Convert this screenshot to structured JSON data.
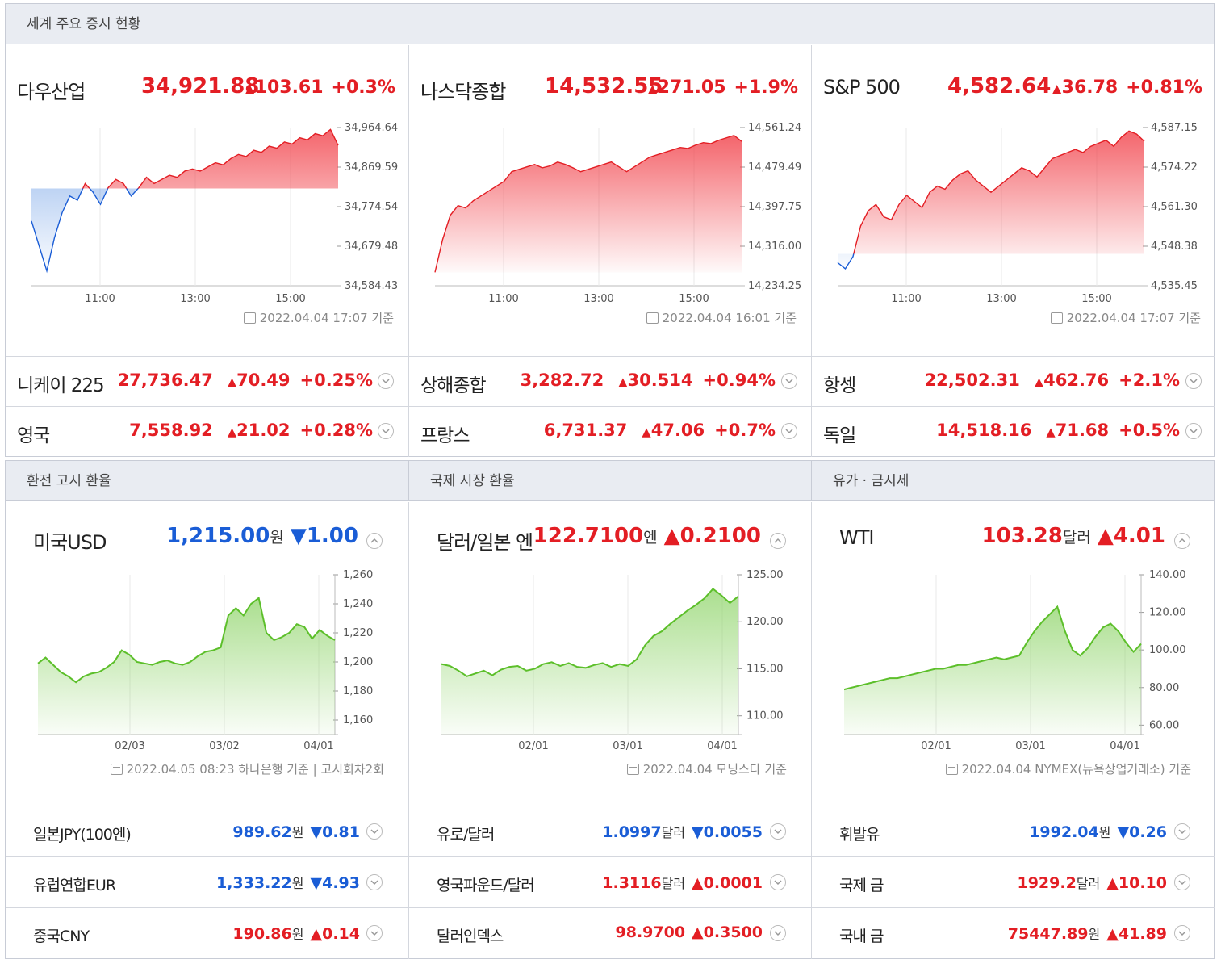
{
  "stock_header": "세계 주요 증시 현황",
  "stocks_main": [
    {
      "name": "다우산업",
      "price": "34,921.88",
      "change": "103.61",
      "pct": "+0.3%",
      "timestamp": "2022.04.04 17:07 기준",
      "y_ticks": [
        "34,964.64",
        "34,869.59",
        "34,774.54",
        "34,679.48",
        "34,584.43"
      ],
      "x_ticks": [
        "11:00",
        "13:00",
        "15:00"
      ],
      "baseline_index": 0.38,
      "chart_data": {
        "type": "area",
        "y_min": 34584.43,
        "y_max": 34964.64,
        "prev_close": 34818.27,
        "values": [
          34740,
          34680,
          34620,
          34700,
          34760,
          34800,
          34790,
          34830,
          34810,
          34780,
          34820,
          34840,
          34830,
          34800,
          34820,
          34845,
          34830,
          34840,
          34850,
          34845,
          34860,
          34865,
          34860,
          34870,
          34880,
          34875,
          34890,
          34900,
          34895,
          34910,
          34905,
          34920,
          34915,
          34930,
          34925,
          34940,
          34935,
          34950,
          34945,
          34960,
          34921.88
        ]
      }
    },
    {
      "name": "나스닥종합",
      "price": "14,532.55",
      "change": "271.05",
      "pct": "+1.9%",
      "timestamp": "2022.04.04 16:01 기준",
      "y_ticks": [
        "14,561.24",
        "14,479.49",
        "14,397.75",
        "14,316.00",
        "14,234.25"
      ],
      "x_ticks": [
        "11:00",
        "13:00",
        "15:00"
      ],
      "baseline_index": 0,
      "chart_data": {
        "type": "area",
        "y_min": 14234.25,
        "y_max": 14561.24,
        "prev_close": 14261.5,
        "values": [
          14262,
          14330,
          14380,
          14400,
          14395,
          14410,
          14420,
          14430,
          14440,
          14450,
          14470,
          14475,
          14480,
          14485,
          14478,
          14482,
          14490,
          14485,
          14478,
          14470,
          14475,
          14480,
          14485,
          14490,
          14480,
          14470,
          14480,
          14490,
          14500,
          14505,
          14510,
          14515,
          14520,
          14518,
          14525,
          14530,
          14528,
          14535,
          14540,
          14545,
          14532.55
        ]
      }
    },
    {
      "name": "S&P 500",
      "price": "4,582.64",
      "change": "36.78",
      "pct": "+0.81%",
      "timestamp": "2022.04.04 17:07 기준",
      "y_ticks": [
        "4,587.15",
        "4,574.22",
        "4,561.30",
        "4,548.38",
        "4,535.45"
      ],
      "x_ticks": [
        "11:00",
        "13:00",
        "15:00"
      ],
      "baseline_index": 0.05,
      "chart_data": {
        "type": "area",
        "y_min": 4535.45,
        "y_max": 4587.15,
        "prev_close": 4545.86,
        "values": [
          4543,
          4541,
          4545,
          4555,
          4560,
          4562,
          4558,
          4557,
          4562,
          4565,
          4563,
          4561,
          4566,
          4568,
          4567,
          4570,
          4572,
          4573,
          4570,
          4568,
          4566,
          4568,
          4570,
          4572,
          4574,
          4573,
          4571,
          4574,
          4577,
          4578,
          4579,
          4580,
          4579,
          4581,
          4582,
          4583,
          4581,
          4584,
          4586,
          4585,
          4582.64
        ]
      }
    }
  ],
  "stocks_rows": [
    [
      {
        "name": "니케이 225",
        "price": "27,736.47",
        "change": "70.49",
        "pct": "+0.25%"
      },
      {
        "name": "상해종합",
        "price": "3,282.72",
        "change": "30.514",
        "pct": "+0.94%"
      },
      {
        "name": "항셍",
        "price": "22,502.31",
        "change": "462.76",
        "pct": "+2.1%"
      }
    ],
    [
      {
        "name": "영국",
        "price": "7,558.92",
        "change": "21.02",
        "pct": "+0.28%"
      },
      {
        "name": "프랑스",
        "price": "6,731.37",
        "change": "47.06",
        "pct": "+0.7%"
      },
      {
        "name": "독일",
        "price": "14,518.16",
        "change": "71.68",
        "pct": "+0.5%"
      }
    ]
  ],
  "fx_headers": [
    "환전 고시 환율",
    "국제 시장 환율",
    "유가 · 금시세"
  ],
  "fx_main": [
    {
      "name": "미국USD",
      "price": "1,215.00",
      "unit": "원",
      "dir": "down",
      "change": "1.00",
      "timestamp": "2022.04.05 08:23 하나은행 기준 | 고시회차2회",
      "y_ticks": [
        "1,260",
        "1,240",
        "1,220",
        "1,200",
        "1,180",
        "1,160"
      ],
      "x_ticks": [
        "02/03",
        "03/02",
        "04/01"
      ],
      "chart_data": {
        "type": "area",
        "y_min": 1150,
        "y_max": 1260,
        "values": [
          1199,
          1203,
          1198,
          1193,
          1190,
          1186,
          1190,
          1192,
          1193,
          1196,
          1200,
          1208,
          1205,
          1200,
          1199,
          1198,
          1200,
          1201,
          1199,
          1198,
          1200,
          1204,
          1207,
          1208,
          1210,
          1232,
          1237,
          1232,
          1240,
          1244,
          1220,
          1215,
          1217,
          1220,
          1226,
          1224,
          1216,
          1222,
          1218,
          1215
        ]
      }
    },
    {
      "name": "달러/일본 엔",
      "price": "122.7100",
      "unit": "엔",
      "dir": "up",
      "change": "0.2100",
      "timestamp": "2022.04.04 모닝스타 기준",
      "y_ticks": [
        "125.00",
        "120.00",
        "115.00",
        "110.00"
      ],
      "x_ticks": [
        "02/01",
        "03/01",
        "04/01"
      ],
      "chart_data": {
        "type": "area",
        "y_min": 108,
        "y_max": 125,
        "values": [
          115.5,
          115.3,
          114.8,
          114.2,
          114.5,
          114.8,
          114.3,
          114.9,
          115.2,
          115.3,
          114.8,
          115.0,
          115.5,
          115.7,
          115.3,
          115.6,
          115.2,
          115.1,
          115.4,
          115.6,
          115.2,
          115.5,
          115.3,
          116.0,
          117.5,
          118.5,
          119.0,
          119.8,
          120.5,
          121.2,
          121.8,
          122.5,
          123.5,
          122.8,
          122.0,
          122.71
        ]
      }
    },
    {
      "name": "WTI",
      "price": "103.28",
      "unit": "달러",
      "dir": "up",
      "change": "4.01",
      "timestamp": "2022.04.04 NYMEX(뉴욕상업거래소) 기준",
      "y_ticks": [
        "140.00",
        "120.00",
        "100.00",
        "80.00",
        "60.00"
      ],
      "x_ticks": [
        "02/01",
        "03/01",
        "04/01"
      ],
      "chart_data": {
        "type": "area",
        "y_min": 55,
        "y_max": 140,
        "values": [
          79,
          80,
          81,
          82,
          83,
          84,
          85,
          85,
          86,
          87,
          88,
          89,
          90,
          90,
          91,
          92,
          92,
          93,
          94,
          95,
          96,
          95,
          96,
          97,
          104,
          110,
          115,
          119,
          123,
          110,
          100,
          97,
          101,
          107,
          112,
          114,
          110,
          104,
          99,
          103.28
        ]
      }
    }
  ],
  "fx_rows": [
    [
      {
        "name": "일본JPY(100엔)",
        "price": "989.62",
        "unit": "원",
        "dir": "down",
        "change": "0.81"
      },
      {
        "name": "유로/달러",
        "price": "1.0997",
        "unit": "달러",
        "dir": "down",
        "change": "0.0055"
      },
      {
        "name": "휘발유",
        "price": "1992.04",
        "unit": "원",
        "dir": "down",
        "change": "0.26"
      }
    ],
    [
      {
        "name": "유럽연합EUR",
        "price": "1,333.22",
        "unit": "원",
        "dir": "down",
        "change": "4.93"
      },
      {
        "name": "영국파운드/달러",
        "price": "1.3116",
        "unit": "달러",
        "dir": "up",
        "change": "0.0001"
      },
      {
        "name": "국제 금",
        "price": "1929.2",
        "unit": "달러",
        "dir": "up",
        "change": "10.10"
      }
    ],
    [
      {
        "name": "중국CNY",
        "price": "190.86",
        "unit": "원",
        "dir": "up",
        "change": "0.14"
      },
      {
        "name": "달러인덱스",
        "price": "98.9700",
        "unit": "",
        "dir": "up",
        "change": "0.3500"
      },
      {
        "name": "국내 금",
        "price": "75447.89",
        "unit": "원",
        "dir": "up",
        "change": "41.89"
      }
    ]
  ]
}
